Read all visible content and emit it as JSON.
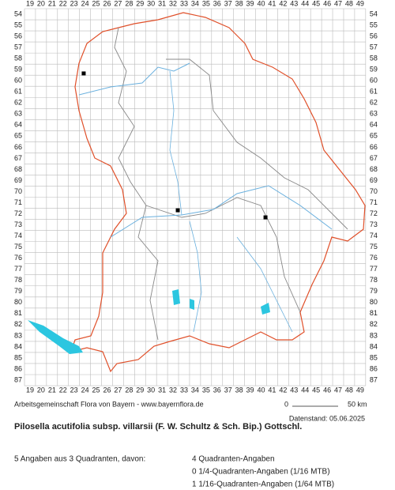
{
  "grid": {
    "columns": [
      19,
      20,
      21,
      22,
      23,
      24,
      25,
      26,
      27,
      28,
      29,
      30,
      31,
      32,
      33,
      34,
      35,
      36,
      37,
      38,
      39,
      40,
      41,
      42,
      43,
      44,
      45,
      46,
      47,
      48,
      49
    ],
    "rows": [
      54,
      55,
      56,
      57,
      58,
      59,
      60,
      61,
      62,
      63,
      64,
      65,
      66,
      67,
      68,
      69,
      70,
      71,
      72,
      73,
      74,
      75,
      76,
      77,
      78,
      79,
      80,
      81,
      82,
      83,
      84,
      85,
      86,
      87
    ]
  },
  "points": [
    {
      "x": 24.38,
      "y": 59.84
    },
    {
      "x": 32.93,
      "y": 72.18
    },
    {
      "x": 40.9,
      "y": 72.82
    }
  ],
  "credit": "Arbeitsgemeinschaft Flora von Bayern - www.bayernflora.de",
  "scale": {
    "start": "0",
    "end": "50 km"
  },
  "date": "Datenstand: 05.06.2025",
  "title": "Pilosella acutifolia subsp. villarsii (F. W. Schultz & Sch. Bip.) Gottschl.",
  "summary": {
    "total": "5 Angaben aus 3 Quadranten, davon:",
    "lines": [
      "4 Quadranten-Angaben",
      "0 1/4-Quadranten-Angaben (1/16 MTB)",
      "1 1/16-Quadranten-Angaben (1/64 MTB)"
    ]
  }
}
